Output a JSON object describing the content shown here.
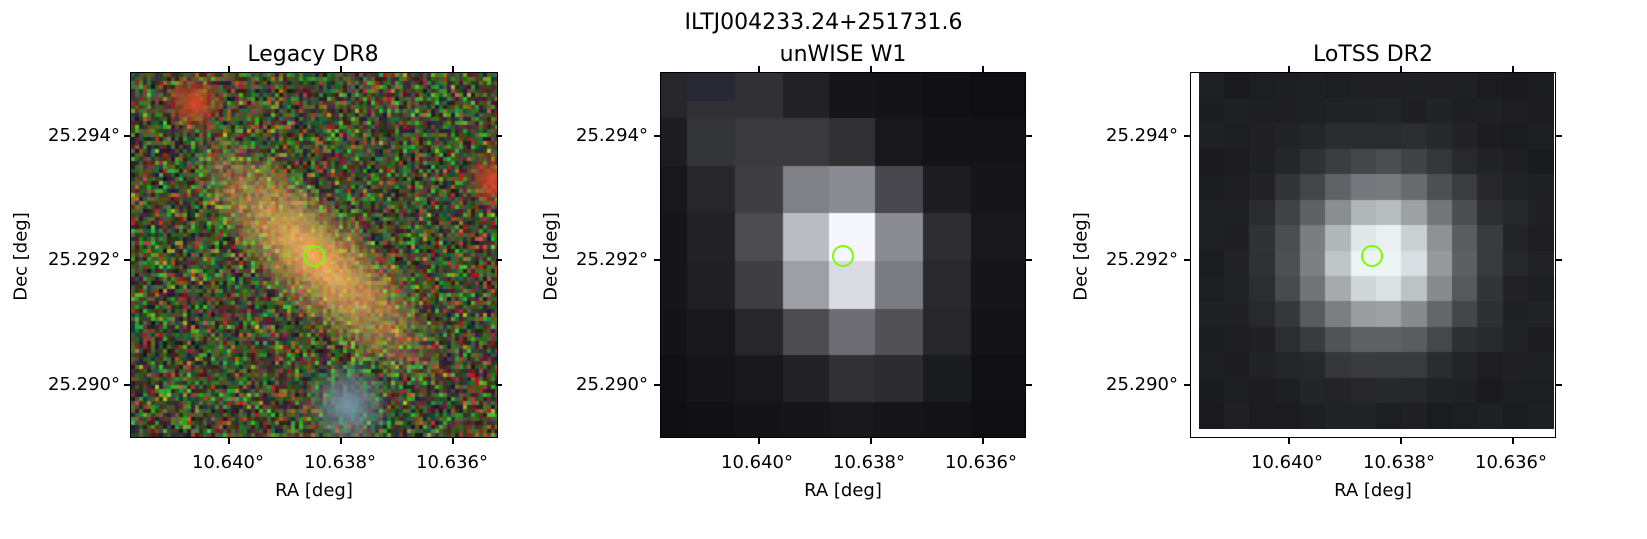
{
  "figure": {
    "title": "ILTJ004233.24+251731.6",
    "panels": [
      {
        "title": "Legacy DR8",
        "xlabel": "RA [deg]",
        "ylabel": "Dec [deg]",
        "xticks": [
          "10.640°",
          "10.638°",
          "10.636°"
        ],
        "yticks": [
          "25.294°",
          "25.292°",
          "25.290°"
        ]
      },
      {
        "title": "unWISE W1",
        "xlabel": "RA [deg]",
        "ylabel": "Dec [deg]",
        "xticks": [
          "10.640°",
          "10.638°",
          "10.636°"
        ],
        "yticks": [
          "25.294°",
          "25.292°",
          "25.290°"
        ]
      },
      {
        "title": "LoTSS DR2",
        "xlabel": "RA [deg]",
        "ylabel": "Dec [deg]",
        "xticks": [
          "10.640°",
          "10.638°",
          "10.636°"
        ],
        "yticks": [
          "25.294°",
          "25.292°",
          "25.290°"
        ]
      }
    ]
  },
  "marker_color": "#7cfc00"
}
